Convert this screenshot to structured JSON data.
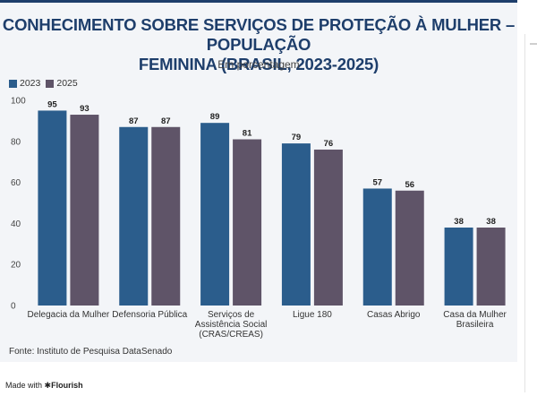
{
  "title_line1": "CONHECIMENTO SOBRE SERVIÇOS DE PROTEÇÃO À MULHER – POPULAÇÃO",
  "title_line2": "FEMININA (BRASIL, 2023-2025)",
  "subtitle": "Em porcentagem",
  "source": "Fonte: Instituto de Pesquisa DataSenado",
  "made_with": "Made with",
  "made_brand": "Flourish",
  "colors": {
    "2023": "#2b5d8c",
    "2025": "#5f5468",
    "title": "#1e3e6b"
  },
  "chart_data": {
    "type": "bar",
    "categories": [
      [
        "Delegacia da Mulher"
      ],
      [
        "Defensoria Pública"
      ],
      [
        "Serviços de",
        "Assistência Social",
        "(CRAS/CREAS)"
      ],
      [
        "Ligue 180"
      ],
      [
        "Casas Abrigo"
      ],
      [
        "Casa da Mulher",
        "Brasileira"
      ]
    ],
    "series": [
      {
        "name": "2023",
        "values": [
          95,
          87,
          89,
          79,
          57,
          38
        ]
      },
      {
        "name": "2025",
        "values": [
          93,
          87,
          81,
          76,
          56,
          38
        ]
      }
    ],
    "ylim": [
      0,
      100
    ],
    "yticks": [
      0,
      20,
      40,
      60,
      80,
      100
    ],
    "grid": false,
    "legend": "top-left"
  }
}
